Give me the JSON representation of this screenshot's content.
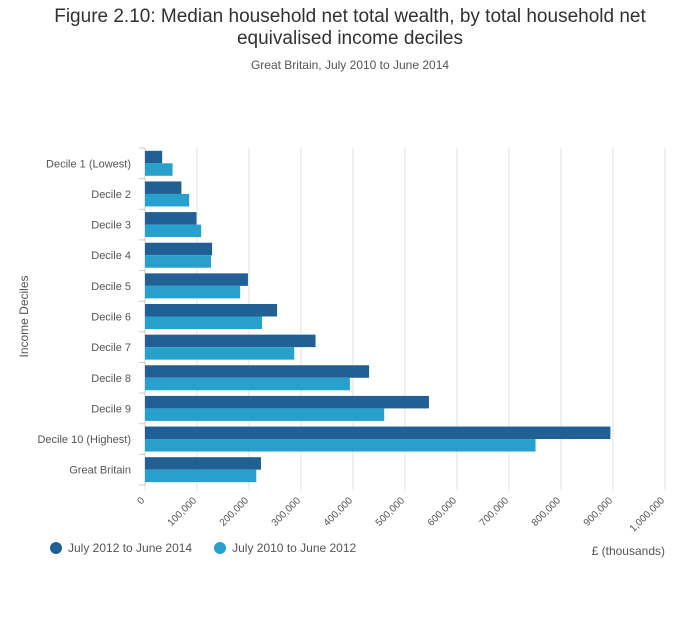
{
  "header": {
    "title_line1": "Figure 2.10: Median household net total wealth, by total household net",
    "title_line2": "equivalised income deciles",
    "subtitle": "Great Britain, July 2010 to June 2014"
  },
  "legend": {
    "items": [
      {
        "label": "July 2012 to June 2014",
        "color": "#206095"
      },
      {
        "label": "July 2010 to June 2012",
        "color": "#27a0cc"
      }
    ]
  },
  "chart_data": {
    "type": "bar",
    "orientation": "horizontal",
    "title": "Figure 2.10: Median household net total wealth, by total household net equivalised income deciles",
    "subtitle": "Great Britain, July 2010 to June 2014",
    "xlabel": "£ (thousands)",
    "ylabel": "Income Deciles",
    "xlim": [
      0,
      1000000
    ],
    "x_ticks": [
      0,
      100000,
      200000,
      300000,
      400000,
      500000,
      600000,
      700000,
      800000,
      900000,
      1000000
    ],
    "x_tick_labels": [
      "0",
      "100,000",
      "200,000",
      "300,000",
      "400,000",
      "500,000",
      "600,000",
      "700,000",
      "800,000",
      "900,000",
      "1,000,000"
    ],
    "grid": true,
    "legend_position": "bottom-left",
    "categories": [
      "Decile 1 (Lowest)",
      "Decile 2",
      "Decile 3",
      "Decile 4",
      "Decile 5",
      "Decile 6",
      "Decile 7",
      "Decile 8",
      "Decile 9",
      "Decile 10 (Highest)",
      "Great Britain"
    ],
    "series": [
      {
        "name": "July 2012 to June 2014",
        "color": "#206095",
        "values": [
          33000,
          70000,
          99000,
          129000,
          198000,
          254000,
          328000,
          431000,
          546000,
          895000,
          223000
        ]
      },
      {
        "name": "July 2010 to June 2012",
        "color": "#27a0cc",
        "values": [
          53000,
          85000,
          108000,
          127000,
          183000,
          225000,
          287000,
          394000,
          460000,
          751000,
          214000
        ]
      }
    ]
  }
}
